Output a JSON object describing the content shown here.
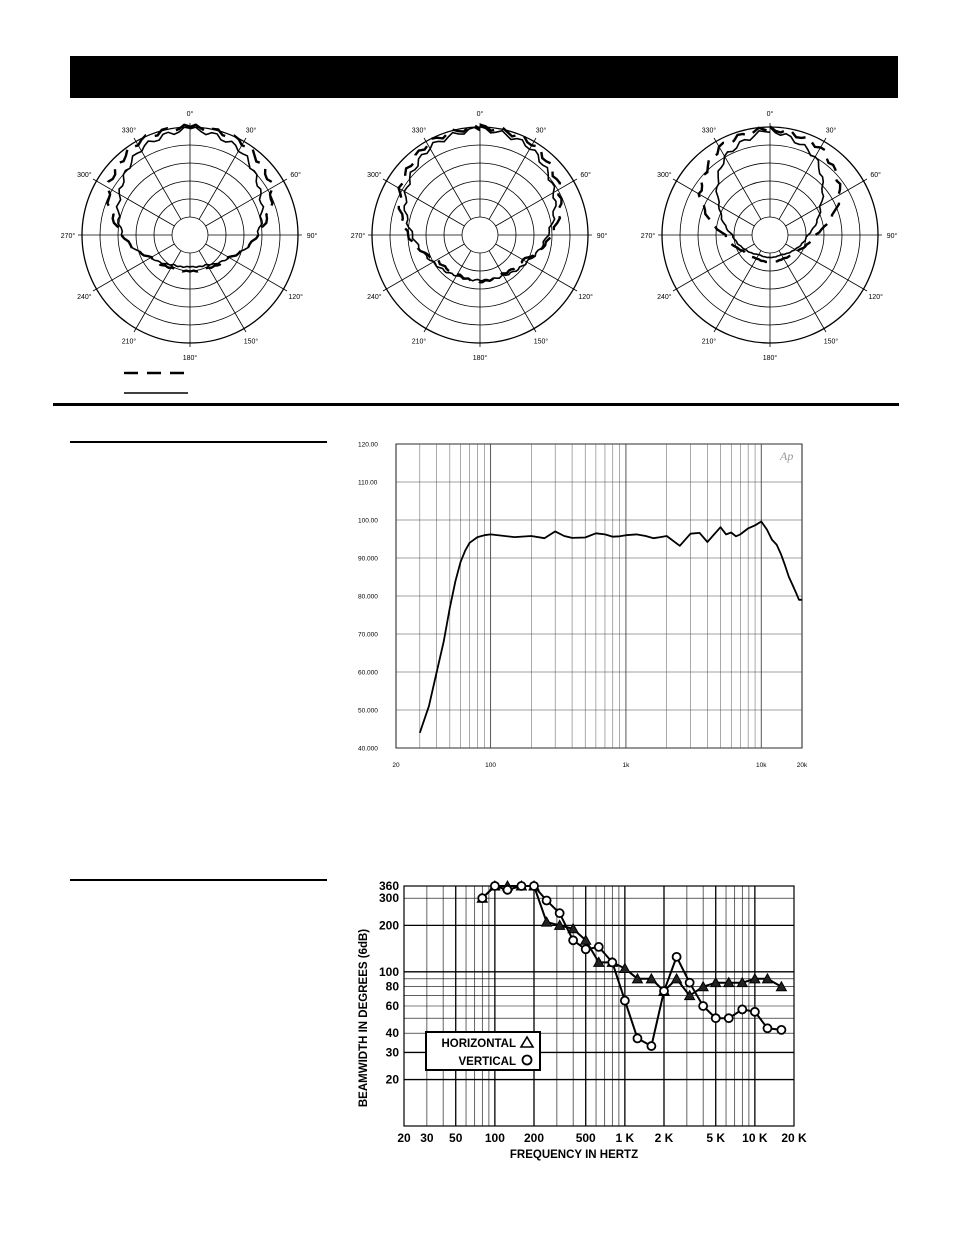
{
  "polar_angle_labels": [
    "0°",
    "30°",
    "60°",
    "90°",
    "120°",
    "150°",
    "180°",
    "210°",
    "240°",
    "270°",
    "300°",
    "330°"
  ],
  "chart_data": [
    {
      "type": "polar",
      "angle_labels": [
        "0°",
        "30°",
        "60°",
        "90°",
        "120°",
        "150°",
        "180°",
        "210°",
        "240°",
        "270°",
        "300°",
        "330°"
      ],
      "rings": 6,
      "series": [
        {
          "style": "dashed",
          "radius_fraction": [
            1.0,
            0.98,
            0.85,
            0.55,
            0.3,
            0.22,
            0.2,
            0.22,
            0.3,
            0.55,
            0.85,
            0.98
          ]
        },
        {
          "style": "solid",
          "radius_fraction": [
            0.98,
            0.9,
            0.7,
            0.55,
            0.3,
            0.18,
            0.15,
            0.18,
            0.3,
            0.55,
            0.7,
            0.9
          ]
        }
      ]
    },
    {
      "type": "polar",
      "angle_labels": [
        "0°",
        "30°",
        "60°",
        "90°",
        "120°",
        "150°",
        "180°",
        "210°",
        "240°",
        "270°",
        "300°",
        "330°"
      ],
      "rings": 6,
      "series": [
        {
          "style": "dashed",
          "radius_fraction": [
            1.0,
            0.97,
            0.82,
            0.6,
            0.35,
            0.3,
            0.32,
            0.3,
            0.35,
            0.6,
            0.82,
            0.97
          ]
        },
        {
          "style": "solid",
          "radius_fraction": [
            0.98,
            0.92,
            0.75,
            0.55,
            0.4,
            0.32,
            0.3,
            0.32,
            0.4,
            0.55,
            0.75,
            0.92
          ]
        }
      ]
    },
    {
      "type": "polar",
      "angle_labels": [
        "0°",
        "30°",
        "60°",
        "90°",
        "120°",
        "150°",
        "180°",
        "210°",
        "240°",
        "270°",
        "300°",
        "330°"
      ],
      "rings": 6,
      "series": [
        {
          "style": "dashed",
          "radius_fraction": [
            0.98,
            0.92,
            0.7,
            0.3,
            0.15,
            0.1,
            0.1,
            0.1,
            0.15,
            0.3,
            0.7,
            0.92
          ]
        },
        {
          "style": "solid",
          "radius_fraction": [
            0.97,
            0.8,
            0.45,
            0.22,
            0.12,
            0.05,
            0.05,
            0.05,
            0.12,
            0.22,
            0.45,
            0.8
          ]
        }
      ]
    },
    {
      "type": "line",
      "x_scale": "log",
      "xlim": [
        20,
        20000
      ],
      "ylim": [
        40,
        120
      ],
      "y_tick_labels": [
        "120.00",
        "110.00",
        "100.00",
        "90.000",
        "80.000",
        "70.000",
        "60.000",
        "50.000",
        "40.000"
      ],
      "y_tick_values": [
        120,
        110,
        100,
        90,
        80,
        70,
        60,
        50,
        40
      ],
      "x_tick_labels": [
        "20",
        "100",
        "1k",
        "10k",
        "20k"
      ],
      "x_tick_values": [
        20,
        100,
        1000,
        10000,
        20000
      ],
      "corner_text": "Ap",
      "series": [
        {
          "x": [
            30,
            35,
            40,
            45,
            50,
            55,
            60,
            65,
            70,
            80,
            90,
            100,
            150,
            200,
            250,
            300,
            350,
            400,
            500,
            600,
            700,
            800,
            900,
            1000,
            1200,
            1400,
            1600,
            1800,
            2000,
            2500,
            3000,
            3500,
            4000,
            5000,
            5500,
            6000,
            6500,
            7000,
            8000,
            9000,
            10000,
            11000,
            12000,
            13000,
            14000,
            15000,
            16000,
            17000,
            18000,
            19000,
            20000
          ],
          "y": [
            44,
            51,
            60,
            68,
            77,
            84,
            89,
            92,
            94,
            95.5,
            96,
            96.2,
            95.5,
            95.8,
            95.2,
            97,
            95.8,
            95.3,
            95.4,
            96.5,
            96.2,
            95.6,
            95.7,
            96,
            96.2,
            95.8,
            95.2,
            95.5,
            95.8,
            93.2,
            96.4,
            96.6,
            94.2,
            98.1,
            96.2,
            96.7,
            95.7,
            96.2,
            97.8,
            98.6,
            99.6,
            97.5,
            94.8,
            93.5,
            91,
            88,
            85,
            83,
            81,
            79,
            79
          ]
        }
      ]
    },
    {
      "type": "line",
      "x_scale": "log",
      "y_scale": "log",
      "xlim": [
        20,
        20000
      ],
      "ylim": [
        10,
        360
      ],
      "ylabel": "BEAMWIDTH IN DEGREES (6dB)",
      "xlabel": "FREQUENCY IN HERTZ",
      "x_tick_labels": [
        "20",
        "30",
        "50",
        "100",
        "200",
        "500",
        "1 K",
        "2 K",
        "5 K",
        "10 K",
        "20 K"
      ],
      "x_tick_values": [
        20,
        30,
        50,
        100,
        200,
        500,
        1000,
        2000,
        5000,
        10000,
        20000
      ],
      "y_tick_labels": [
        "360",
        "300",
        "200",
        "100",
        "80",
        "60",
        "40",
        "30",
        "20"
      ],
      "y_tick_values": [
        360,
        300,
        200,
        100,
        80,
        60,
        40,
        30,
        20
      ],
      "legend": {
        "placement": "lower-left",
        "entries": [
          "HORIZONTAL",
          "VERTICAL"
        ]
      },
      "series": [
        {
          "name": "HORIZONTAL",
          "marker": "triangle",
          "x": [
            80,
            100,
            125,
            160,
            200,
            250,
            315,
            400,
            500,
            630,
            800,
            1000,
            1250,
            1600,
            2000,
            2500,
            3150,
            4000,
            5000,
            6300,
            8000,
            10000,
            12500,
            16000
          ],
          "y": [
            300,
            360,
            360,
            360,
            360,
            210,
            200,
            190,
            160,
            115,
            115,
            105,
            90,
            90,
            75,
            90,
            70,
            80,
            85,
            85,
            85,
            90,
            90,
            80
          ]
        },
        {
          "name": "VERTICAL",
          "marker": "circle",
          "x": [
            80,
            100,
            125,
            160,
            200,
            250,
            315,
            400,
            500,
            630,
            800,
            1000,
            1250,
            1600,
            2000,
            2500,
            3150,
            4000,
            5000,
            6300,
            8000,
            10000,
            12500,
            16000
          ],
          "y": [
            300,
            360,
            340,
            360,
            360,
            290,
            240,
            160,
            140,
            145,
            115,
            65,
            37,
            33,
            75,
            125,
            85,
            60,
            50,
            50,
            57,
            55,
            43,
            42
          ]
        }
      ]
    }
  ]
}
